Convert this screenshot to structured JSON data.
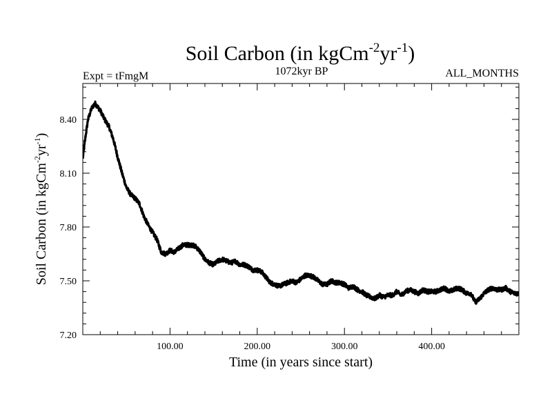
{
  "chart_data": {
    "type": "line",
    "title": {
      "text": "Soil Carbon (in kgCm",
      "sup1": "-2",
      "mid": "yr",
      "sup2": "-1",
      "close": ")"
    },
    "header": {
      "left": "Expt = tFmgM",
      "center": "1072kyr BP",
      "right": "ALL_MONTHS"
    },
    "xlabel": "Time (in years since start)",
    "ylabel": {
      "text": "Soil Carbon (in kgCm",
      "sup1": "-2",
      "mid": "yr",
      "sup2": "-1",
      "close": ")"
    },
    "xlim": [
      0,
      500
    ],
    "ylim": [
      7.2,
      8.6
    ],
    "x_ticks": [
      {
        "value": 100,
        "label": "100.00"
      },
      {
        "value": 200,
        "label": "200.00"
      },
      {
        "value": 300,
        "label": "300.00"
      },
      {
        "value": 400,
        "label": "400.00"
      }
    ],
    "y_ticks": [
      {
        "value": 7.2,
        "label": "7.20"
      },
      {
        "value": 7.5,
        "label": "7.50"
      },
      {
        "value": 7.8,
        "label": "7.80"
      },
      {
        "value": 8.1,
        "label": "8.10"
      },
      {
        "value": 8.4,
        "label": "8.40"
      }
    ],
    "series": [
      {
        "name": "Soil Carbon",
        "color": "#000000",
        "x": [
          0,
          3,
          6,
          10,
          14,
          17,
          20,
          25,
          30,
          35,
          40,
          45,
          50,
          55,
          60,
          65,
          70,
          75,
          80,
          85,
          90,
          95,
          100,
          105,
          110,
          115,
          120,
          125,
          130,
          135,
          140,
          145,
          150,
          155,
          160,
          165,
          170,
          175,
          180,
          185,
          190,
          195,
          200,
          205,
          210,
          215,
          220,
          225,
          230,
          235,
          240,
          245,
          250,
          255,
          260,
          265,
          270,
          275,
          280,
          285,
          290,
          295,
          300,
          305,
          310,
          315,
          320,
          325,
          330,
          335,
          340,
          345,
          350,
          355,
          360,
          365,
          370,
          375,
          380,
          385,
          390,
          395,
          400,
          405,
          410,
          415,
          420,
          425,
          430,
          435,
          440,
          445,
          450,
          455,
          460,
          465,
          470,
          475,
          480,
          485,
          490,
          495,
          500
        ],
        "y": [
          8.18,
          8.3,
          8.4,
          8.46,
          8.49,
          8.47,
          8.45,
          8.4,
          8.36,
          8.29,
          8.19,
          8.1,
          8.02,
          7.98,
          7.96,
          7.93,
          7.86,
          7.81,
          7.77,
          7.73,
          7.66,
          7.65,
          7.67,
          7.66,
          7.68,
          7.7,
          7.7,
          7.7,
          7.69,
          7.66,
          7.62,
          7.6,
          7.59,
          7.61,
          7.62,
          7.61,
          7.6,
          7.61,
          7.59,
          7.59,
          7.58,
          7.56,
          7.56,
          7.55,
          7.52,
          7.49,
          7.48,
          7.47,
          7.48,
          7.49,
          7.5,
          7.49,
          7.51,
          7.53,
          7.53,
          7.52,
          7.5,
          7.48,
          7.48,
          7.5,
          7.49,
          7.49,
          7.48,
          7.46,
          7.47,
          7.45,
          7.44,
          7.42,
          7.41,
          7.4,
          7.42,
          7.41,
          7.42,
          7.42,
          7.44,
          7.42,
          7.44,
          7.45,
          7.44,
          7.43,
          7.45,
          7.44,
          7.44,
          7.44,
          7.45,
          7.46,
          7.44,
          7.45,
          7.46,
          7.45,
          7.43,
          7.43,
          7.38,
          7.4,
          7.43,
          7.45,
          7.46,
          7.45,
          7.45,
          7.46,
          7.44,
          7.43,
          7.43
        ],
        "noise_amplitude": 0.012
      }
    ]
  }
}
